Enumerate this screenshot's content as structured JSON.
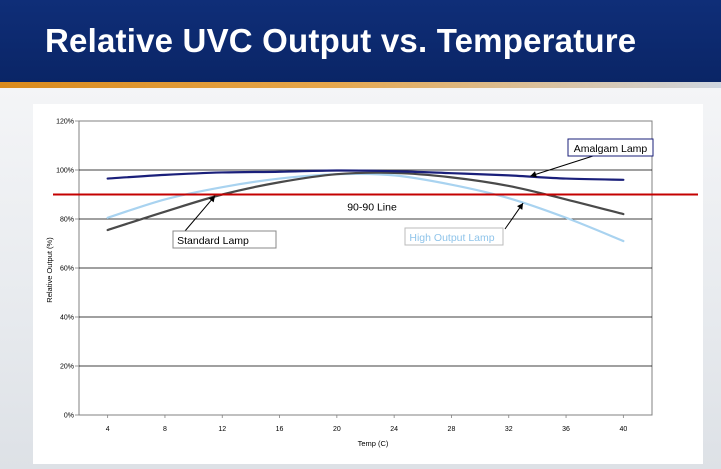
{
  "header": {
    "title": "Relative UVC Output vs. Temperature"
  },
  "colors": {
    "header_bg": "#0f2e78",
    "amalgam": "#1a1f7a",
    "standard": "#4a4a4a",
    "high_output": "#a9d3f0",
    "reference": "#c40000"
  },
  "chart_data": {
    "type": "line",
    "title": "",
    "xlabel": "Temp (C)",
    "ylabel": "Relative Output (%)",
    "x": [
      4,
      8,
      12,
      16,
      20,
      24,
      28,
      32,
      36,
      40
    ],
    "xlim": [
      2,
      42
    ],
    "ylim": [
      0,
      120
    ],
    "yticks": [
      "0%",
      "20%",
      "40%",
      "60%",
      "80%",
      "100%",
      "120%"
    ],
    "xticks": [
      "4",
      "8",
      "12",
      "16",
      "20",
      "24",
      "28",
      "32",
      "36",
      "40"
    ],
    "grid": true,
    "series": [
      {
        "name": "Amalgam Lamp",
        "color": "#1a1f7a",
        "values": [
          96.5,
          98,
          99,
          99.3,
          99.8,
          99.5,
          98.7,
          97.8,
          96.5,
          96
        ]
      },
      {
        "name": "Standard Lamp",
        "color": "#4a4a4a",
        "values": [
          75.5,
          83,
          90,
          95,
          98.3,
          98.8,
          97,
          93.5,
          88,
          82
        ]
      },
      {
        "name": "High Output Lamp",
        "color": "#a9d3f0",
        "values": [
          80.5,
          88,
          93,
          96.5,
          98.3,
          97.8,
          94,
          88.5,
          80.5,
          71
        ]
      }
    ],
    "reference_line": {
      "label": "90-90 Line",
      "y": 90,
      "color": "#c40000"
    },
    "annotations": [
      {
        "text": "Amalgam Lamp",
        "series": "Amalgam Lamp",
        "point_x": 33.5,
        "point_y": 97.5
      },
      {
        "text": "Standard Lamp",
        "series": "Standard Lamp",
        "point_x": 11.5,
        "point_y": 89.5
      },
      {
        "text": "High Output Lamp",
        "series": "High Output Lamp",
        "point_x": 33,
        "point_y": 86.5
      }
    ]
  }
}
